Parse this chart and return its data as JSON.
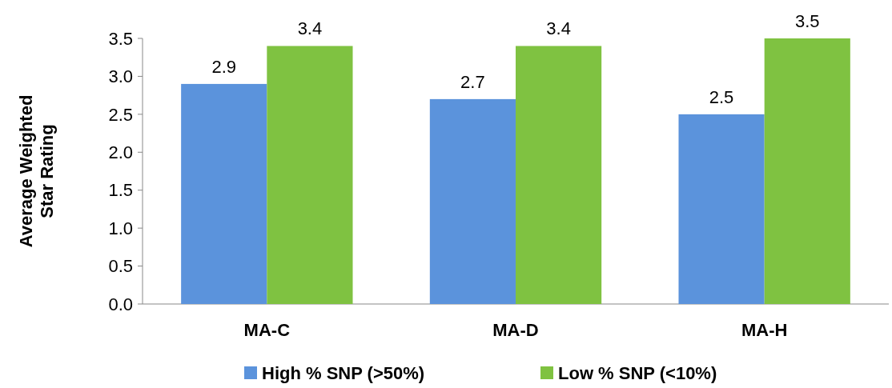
{
  "chart_data": {
    "type": "bar",
    "ylabel": "Average Weighted Star Rating",
    "categories": [
      "MA-C",
      "MA-D",
      "MA-H"
    ],
    "series": [
      {
        "name": "High % SNP (>50%)",
        "color": "#5b93dc",
        "values": [
          2.9,
          2.7,
          2.5
        ]
      },
      {
        "name": "Low % SNP (<10%)",
        "color": "#7fc241",
        "values": [
          3.4,
          3.4,
          3.5
        ]
      }
    ],
    "ylim": [
      0,
      3.5
    ],
    "yticks": [
      {
        "value": 0,
        "label": "0.0"
      },
      {
        "value": 0.5,
        "label": "0.5"
      },
      {
        "value": 1,
        "label": "1.0"
      },
      {
        "value": 1.5,
        "label": "1.5"
      },
      {
        "value": 2,
        "label": "2.0"
      },
      {
        "value": 2.5,
        "label": "2.5"
      },
      {
        "value": 3,
        "label": "3.0"
      },
      {
        "value": 3.5,
        "label": "3.5"
      }
    ],
    "data_labels": true,
    "legend": "bottom",
    "grid": false
  }
}
